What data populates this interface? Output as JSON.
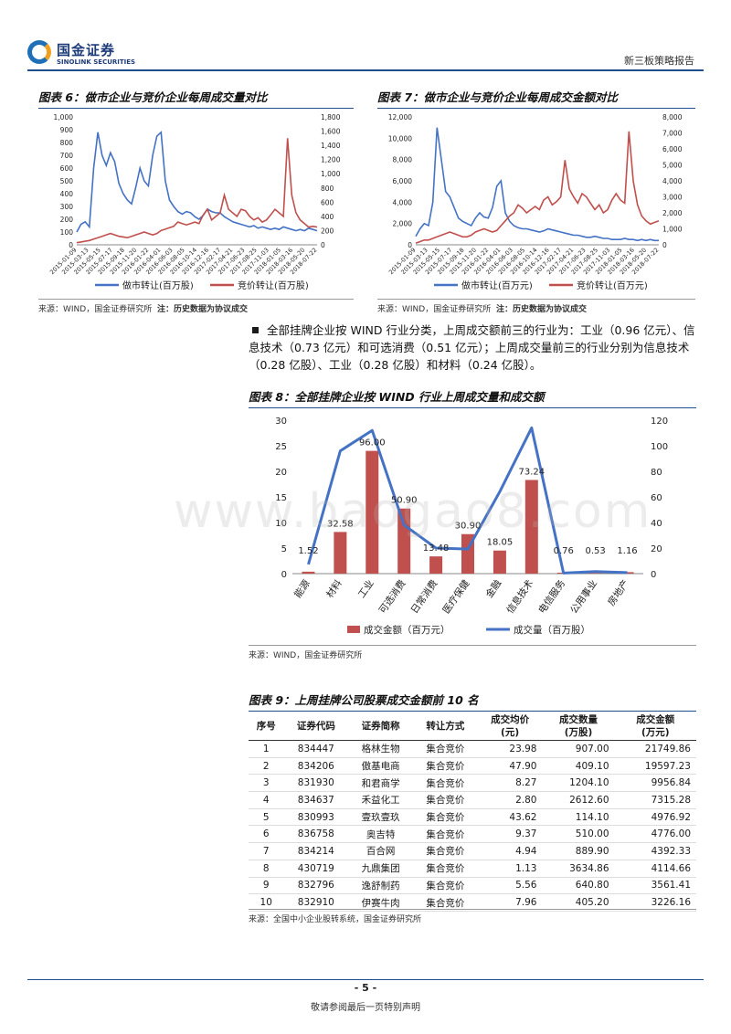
{
  "header": {
    "logo_cn": "国金证券",
    "logo_en": "SINOLINK SECURITIES",
    "report_type": "新三板策略报告"
  },
  "fig6": {
    "title": "图表 6：做市企业与竞价企业每周成交量对比",
    "legend_left": "做市转让(百万股)",
    "legend_right": "竞价转让(百万股)",
    "source": "来源：WIND，国金证券研究所",
    "note": "注：历史数据为协议成交"
  },
  "fig7": {
    "title": "图表 7：做市企业与竞价企业每周成交金额对比",
    "legend_left": "做市转让(百万元)",
    "legend_right": "竞价转让(百万元)",
    "source": "来源：WIND，国金证券研究所",
    "note": "注：历史数据为协议成交"
  },
  "bullet": {
    "text": "全部挂牌企业按 WIND 行业分类，上周成交额前三的行业为：工业（0.96 亿元）、信息技术（0.73 亿元）和可选消费（0.51 亿元）；上周成交量前三的行业分别为信息技术（0.28 亿股）、工业（0.28 亿股）和材料（0.24 亿股）。"
  },
  "fig8": {
    "title": "图表 8：全部挂牌企业按 WIND 行业上周成交量和成交额",
    "legend_bar": "成交金额（百万元）",
    "legend_line": "成交量（百万股）",
    "source": "来源：WIND，国金证券研究所"
  },
  "fig9": {
    "title": "图表 9：上周挂牌公司股票成交金额前 10 名",
    "headers": [
      "序号",
      "证券代码",
      "证券简称",
      "转让方式",
      "成交均价\n(元)",
      "成交数量\n(万股)",
      "成交金额\n(万元)"
    ],
    "rows": [
      [
        "1",
        "834447",
        "格林生物",
        "集合竞价",
        "23.98",
        "907.00",
        "21749.86"
      ],
      [
        "2",
        "834206",
        "傲基电商",
        "集合竞价",
        "47.90",
        "409.10",
        "19597.23"
      ],
      [
        "3",
        "831930",
        "和君商学",
        "集合竞价",
        "8.27",
        "1204.10",
        "9956.84"
      ],
      [
        "4",
        "834637",
        "禾益化工",
        "集合竞价",
        "2.80",
        "2612.60",
        "7315.28"
      ],
      [
        "5",
        "830993",
        "壹玖壹玖",
        "集合竞价",
        "43.62",
        "114.10",
        "4976.92"
      ],
      [
        "6",
        "836758",
        "奥吉特",
        "集合竞价",
        "9.37",
        "510.00",
        "4776.00"
      ],
      [
        "7",
        "834214",
        "百合网",
        "集合竞价",
        "4.94",
        "889.90",
        "4392.33"
      ],
      [
        "8",
        "430719",
        "九鼎集团",
        "集合竞价",
        "1.13",
        "3634.86",
        "4114.66"
      ],
      [
        "9",
        "832796",
        "逸舒制药",
        "集合竞价",
        "5.56",
        "640.80",
        "3561.41"
      ],
      [
        "10",
        "832910",
        "伊赛牛肉",
        "集合竞价",
        "7.96",
        "405.20",
        "3226.16"
      ]
    ],
    "source": "来源：全国中小企业股转系统，国金证券研究所"
  },
  "footer": {
    "page": "- 5 -",
    "note": "敬请参阅最后一页特别声明"
  },
  "watermark": "www.baogao8.com",
  "colors": {
    "blue": "#4472c4",
    "red": "#c0504d",
    "bar": "#c0504d",
    "rule": "#1f4e8c"
  },
  "chart_data": [
    {
      "type": "line",
      "name_ref": "fig6",
      "x_ticks": [
        "2015-01-09",
        "2015-03-13",
        "2015-05-15",
        "2015-07-17",
        "2015-09-18",
        "2015-11-20",
        "2016-01-22",
        "2016-04-01",
        "2016-06-03",
        "2016-08-05",
        "2016-10-14",
        "2016-12-16",
        "2017-02-17",
        "2017-04-21",
        "2017-06-23",
        "2017-08-25",
        "2017-11-03",
        "2018-01-05",
        "2018-03-16",
        "2018-05-20",
        "2018-07-22"
      ],
      "y_left_ticks": [
        "0",
        "100",
        "200",
        "300",
        "400",
        "500",
        "600",
        "700",
        "800",
        "900",
        "1,000"
      ],
      "y_right_ticks": [
        "0",
        "200",
        "400",
        "600",
        "800",
        "1,000",
        "1,200",
        "1,400",
        "1,600",
        "1,800"
      ],
      "ylim_left": [
        0,
        1000
      ],
      "ylim_right": [
        0,
        1800
      ],
      "series": [
        {
          "name": "做市转让(百万股)",
          "axis": "left",
          "values": [
            100,
            160,
            180,
            140,
            600,
            880,
            700,
            620,
            720,
            650,
            480,
            400,
            350,
            320,
            450,
            600,
            500,
            460,
            700,
            850,
            880,
            500,
            350,
            300,
            260,
            240,
            260,
            250,
            220,
            200,
            230,
            280,
            260,
            250,
            250,
            220,
            200,
            180,
            170,
            160,
            150,
            140,
            150,
            130,
            140,
            130,
            120,
            130,
            120,
            140,
            130,
            120,
            110,
            120,
            110,
            130,
            120,
            110
          ]
        },
        {
          "name": "竞价转让(百万股)",
          "axis": "right",
          "values": [
            30,
            40,
            50,
            60,
            80,
            100,
            120,
            140,
            160,
            140,
            120,
            110,
            100,
            120,
            140,
            160,
            180,
            160,
            140,
            160,
            200,
            220,
            240,
            260,
            320,
            300,
            280,
            300,
            320,
            300,
            420,
            500,
            350,
            400,
            450,
            700,
            500,
            450,
            400,
            500,
            480,
            400,
            350,
            380,
            320,
            350,
            420,
            500,
            450,
            400,
            1500,
            700,
            450,
            350,
            300,
            250,
            260,
            250
          ]
        }
      ]
    },
    {
      "type": "line",
      "name_ref": "fig7",
      "x_ticks": [
        "2015-01-09",
        "2015-03-13",
        "2015-05-15",
        "2015-07-17",
        "2015-09-18",
        "2015-11-20",
        "2016-01-22",
        "2016-04-01",
        "2016-06-03",
        "2016-08-05",
        "2016-10-14",
        "2016-12-16",
        "2017-02-17",
        "2017-04-21",
        "2017-06-23",
        "2017-08-25",
        "2017-11-03",
        "2018-01-05",
        "2018-03-16",
        "2018-05-20",
        "2018-07-22"
      ],
      "y_left_ticks": [
        "0",
        "2,000",
        "4,000",
        "6,000",
        "8,000",
        "10,000",
        "12,000"
      ],
      "y_right_ticks": [
        "0",
        "1,000",
        "2,000",
        "3,000",
        "4,000",
        "5,000",
        "6,000",
        "7,000",
        "8,000"
      ],
      "ylim_left": [
        0,
        12000
      ],
      "ylim_right": [
        0,
        8000
      ],
      "series": [
        {
          "name": "做市转让(百万元)",
          "axis": "left",
          "values": [
            800,
            1500,
            2000,
            1800,
            4000,
            11000,
            8000,
            5000,
            4500,
            3500,
            2500,
            2200,
            2000,
            1800,
            2500,
            3000,
            2600,
            2500,
            3500,
            5500,
            6000,
            3000,
            2200,
            1800,
            1600,
            1500,
            1500,
            1400,
            1300,
            1200,
            1300,
            1500,
            1400,
            1300,
            1200,
            1100,
            1000,
            900,
            900,
            800,
            700,
            700,
            800,
            700,
            600,
            600,
            500,
            500,
            500,
            600,
            500,
            500,
            400,
            500,
            400,
            500,
            400,
            400
          ]
        },
        {
          "name": "竞价转让(百万元)",
          "axis": "right",
          "values": [
            100,
            200,
            300,
            300,
            400,
            500,
            600,
            700,
            800,
            700,
            600,
            500,
            500,
            600,
            800,
            900,
            1000,
            900,
            800,
            900,
            1200,
            1500,
            1800,
            2000,
            2500,
            2300,
            2000,
            2200,
            2400,
            2200,
            2800,
            3000,
            2500,
            2700,
            3000,
            5300,
            3500,
            3000,
            2600,
            3200,
            3000,
            2600,
            2200,
            2500,
            2000,
            2200,
            2800,
            3200,
            2800,
            2600,
            7100,
            4000,
            2500,
            1800,
            1500,
            1300,
            1400,
            1500
          ]
        }
      ]
    },
    {
      "type": "bar",
      "name_ref": "fig8",
      "categories": [
        "能源",
        "材料",
        "工业",
        "可选消费",
        "日常消费",
        "医疗保健",
        "金融",
        "信息技术",
        "电信服务",
        "公用事业",
        "房地产"
      ],
      "y_left_ticks": [
        "0",
        "5",
        "10",
        "15",
        "20",
        "25",
        "30"
      ],
      "y_right_ticks": [
        "0",
        "20",
        "40",
        "60",
        "80",
        "100",
        "120"
      ],
      "ylim_left": [
        0,
        30
      ],
      "ylim_right": [
        0,
        120
      ],
      "series": [
        {
          "name": "成交金额（百万元）",
          "axis": "right",
          "kind": "bar",
          "values": [
            1.52,
            32.58,
            96.0,
            50.9,
            13.48,
            30.9,
            18.05,
            73.24,
            0.76,
            0.53,
            1.16
          ]
        },
        {
          "name": "成交量（百万股）",
          "axis": "left",
          "kind": "line",
          "values": [
            1.8,
            24,
            28,
            9.5,
            5,
            4.8,
            16,
            28.5,
            0.1,
            0.4,
            0.2
          ]
        }
      ],
      "data_labels": [
        "1.52",
        "32.58",
        "96.00",
        "50.90",
        "13.48",
        "30.90",
        "18.05",
        "73.24",
        "0.76",
        "0.53",
        "1.16"
      ]
    }
  ]
}
